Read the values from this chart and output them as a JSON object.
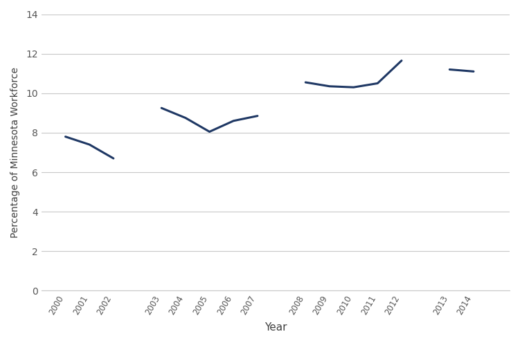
{
  "years": [
    2000,
    2001,
    2002,
    2003,
    2004,
    2005,
    2006,
    2007,
    2008,
    2009,
    2010,
    2011,
    2012,
    2013,
    2014
  ],
  "values": [
    7.8,
    7.4,
    6.7,
    9.25,
    8.75,
    8.05,
    8.6,
    8.85,
    10.55,
    10.35,
    10.3,
    10.5,
    11.65,
    11.2,
    11.1
  ],
  "line_color": "#1F3864",
  "line_width": 2.2,
  "ylabel": "Percentage of Minnesota Workforce",
  "xlabel": "Year",
  "ylim": [
    0,
    14
  ],
  "yticks": [
    0,
    2,
    4,
    6,
    8,
    10,
    12,
    14
  ],
  "background_color": "#ffffff",
  "grid_color": "#c8c8c8",
  "segments": [
    [
      2000,
      2001,
      2002
    ],
    [
      2003,
      2004,
      2005,
      2006,
      2007
    ],
    [
      2008,
      2009,
      2010,
      2011,
      2012
    ],
    [
      2013,
      2014
    ]
  ],
  "x_positions": [
    1,
    2,
    3,
    5,
    6,
    7,
    8,
    9,
    11,
    12,
    13,
    14,
    15,
    17,
    18
  ],
  "xlim": [
    0,
    19.5
  ]
}
